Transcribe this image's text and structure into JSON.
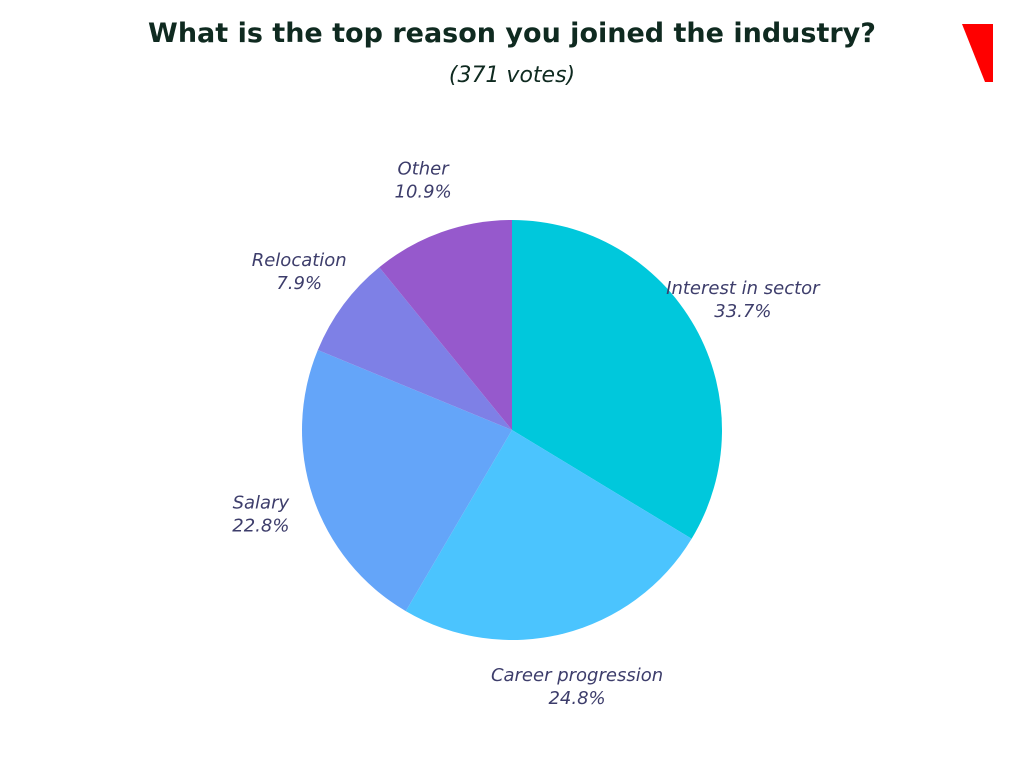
{
  "chart_data": {
    "type": "pie",
    "title": "What is the top reason you joined the industry?",
    "subtitle": "(371 votes)",
    "categories": [
      "Interest in sector",
      "Career progression",
      "Salary",
      "Relocation",
      "Other"
    ],
    "values": [
      33.7,
      24.8,
      22.8,
      7.9,
      10.9
    ],
    "value_labels": [
      "33.7%",
      "24.8%",
      "22.8%",
      "7.9%",
      "10.9%"
    ],
    "colors": [
      "#00c8dc",
      "#4bc4fe",
      "#64a5f9",
      "#7e80e6",
      "#9659cc"
    ]
  }
}
